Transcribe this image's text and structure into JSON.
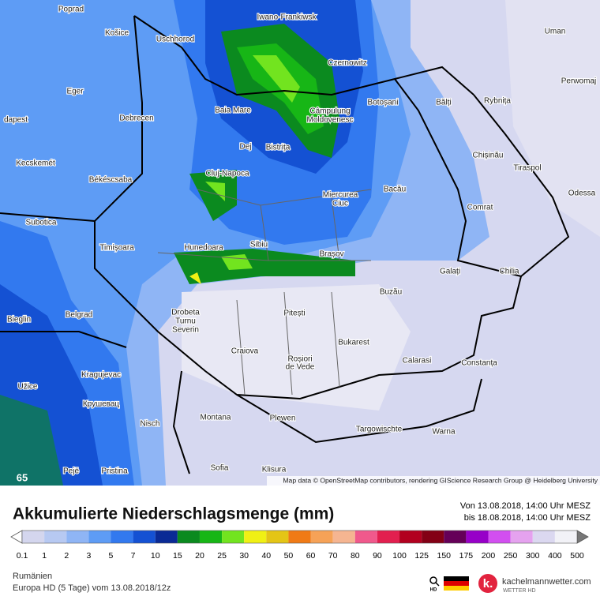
{
  "map": {
    "cities": [
      "Poprad",
      "Košice",
      "Uschhorod",
      "Iwano-Frankiwsk",
      "Uman",
      "Czernowitz",
      "Eger",
      "Bălți",
      "Rybnița",
      "Perwomaj",
      "Botoșani",
      "Baia Mare",
      "Câmpulung",
      "Moldovenesc",
      "Debrecen",
      "dapest",
      "Dej",
      "Bistrița",
      "Chișinău",
      "Kecskemét",
      "Tiraspol",
      "Cluj-Napoca",
      "Békéscsaba",
      "Bacău",
      "Miercurea",
      "Ciuc",
      "Odessa",
      "Comrat",
      "Subotica",
      "Timișoara",
      "Hunedoara",
      "Sibiu",
      "Brașov",
      "Galați",
      "Chilia",
      "Buzău",
      "Drobeta",
      "Turnu",
      "Severin",
      "Pitești",
      "Belgrad",
      "Bieglin",
      "Bukarest",
      "Craiova",
      "Roșiori",
      "de Vede",
      "Calarasi",
      "Constanța",
      "Kragujevac",
      "Užice",
      "Крушевац",
      "Montana",
      "Plewen",
      "Nisch",
      "Targowischte",
      "Warna",
      "Sofia",
      "Klisura",
      "Pejë",
      "Pristina"
    ],
    "corner_label": "65",
    "attribution": "Map data © OpenStreetMap contributors, rendering GIScience Research Group @ Heidelberg University"
  },
  "footer": {
    "title": "Akkumulierte Niederschlagsmenge (mm)",
    "period_from": "Von 13.08.2018, 14:00 Uhr MESZ",
    "period_to": "bis 18.08.2018, 14:00 Uhr MESZ",
    "region": "Rumänien",
    "model": "Europa HD (5 Tage) vom 13.08.2018/12z",
    "brand": "kachelmannwetter.com",
    "brand_sub": "WETTER HD",
    "hd": "HD"
  },
  "legend": {
    "values": [
      0.1,
      1,
      2,
      3,
      5,
      7,
      10,
      15,
      20,
      25,
      30,
      40,
      50,
      60,
      70,
      80,
      90,
      100,
      125,
      150,
      175,
      200,
      250,
      300,
      400,
      500
    ],
    "colors": [
      "#d4d6ee",
      "#b7c9f2",
      "#8fb5f5",
      "#5e9cf5",
      "#3279ef",
      "#1451d3",
      "#0a2a95",
      "#0b8a1f",
      "#17b616",
      "#72e41f",
      "#f0f014",
      "#e4c516",
      "#f07a16",
      "#f6a257",
      "#f5b591",
      "#f0598c",
      "#e21f4f",
      "#b2001f",
      "#830015",
      "#650058",
      "#9700c8",
      "#d24ff0",
      "#e5a2ef",
      "#dbd8f0",
      "#f2f2f7"
    ]
  }
}
